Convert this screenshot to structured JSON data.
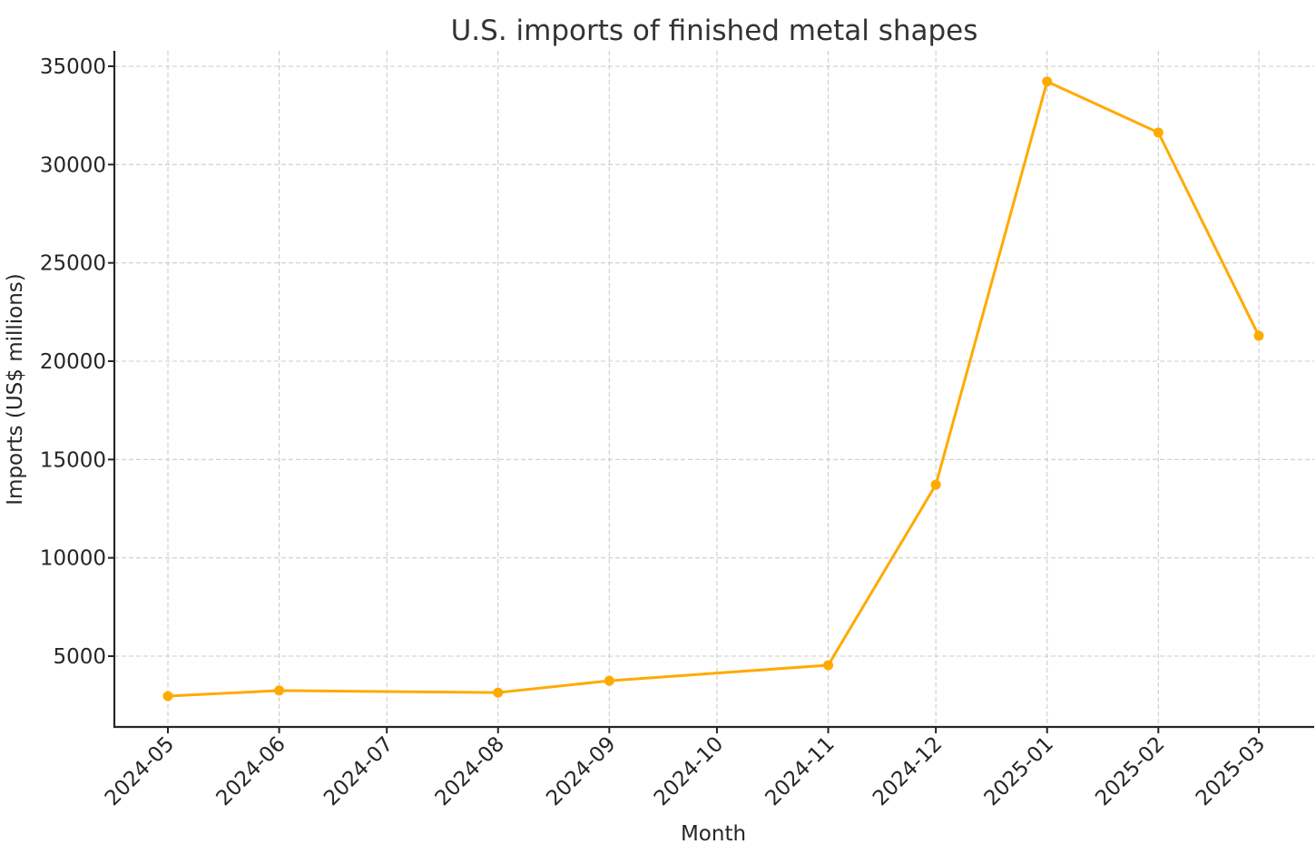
{
  "chart_data": {
    "type": "line",
    "title": "U.S. imports of finished metal shapes",
    "xlabel": "Month",
    "ylabel": "Imports (US$ millions)",
    "x_tick_labels": [
      "2024-05",
      "2024-06",
      "2024-07",
      "2024-08",
      "2024-09",
      "2024-10",
      "2024-11",
      "2024-12",
      "2025-01",
      "2025-02",
      "2025-03"
    ],
    "y_ticks": [
      5000,
      10000,
      15000,
      20000,
      25000,
      30000,
      35000
    ],
    "y_tick_labels": [
      "5000",
      "10000",
      "15000",
      "20000",
      "25000",
      "30000",
      "35000"
    ],
    "ylim": [
      1600,
      35800
    ],
    "grid": true,
    "legend": null,
    "series": [
      {
        "name": "Imports",
        "color": "#FFAA00",
        "marker": "circle",
        "x": [
          "2024-05",
          "2024-06",
          "2024-08",
          "2024-09",
          "2024-11",
          "2024-12",
          "2025-01",
          "2025-02",
          "2025-03"
        ],
        "values": [
          2970,
          3250,
          3150,
          3750,
          4540,
          13720,
          34220,
          31630,
          21290
        ]
      }
    ]
  },
  "colors": {
    "line": "#FFAA00",
    "grid": "#cccccc",
    "axis": "#262626",
    "title": "#333333"
  }
}
